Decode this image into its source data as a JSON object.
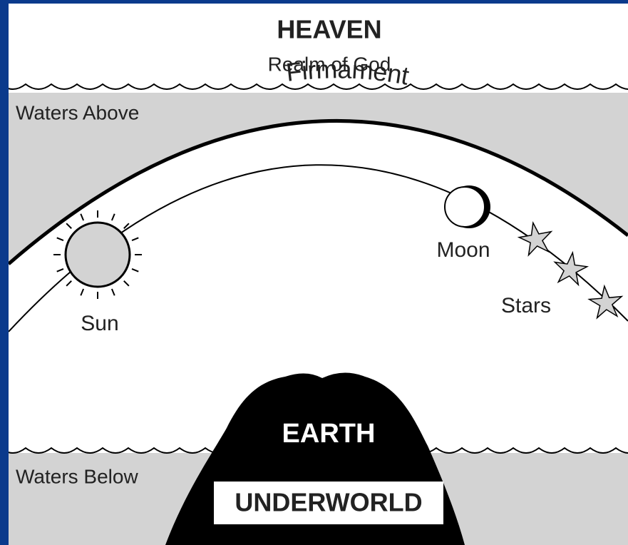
{
  "heaven": {
    "title": "HEAVEN",
    "subtitle": "Realm of God"
  },
  "labels": {
    "waters_above": "Waters Above",
    "firmament": "Firmament",
    "sun": "Sun",
    "moon": "Moon",
    "stars": "Stars",
    "waters_below": "Waters Below",
    "earth": "EARTH",
    "underworld": "UNDERWORLD"
  }
}
